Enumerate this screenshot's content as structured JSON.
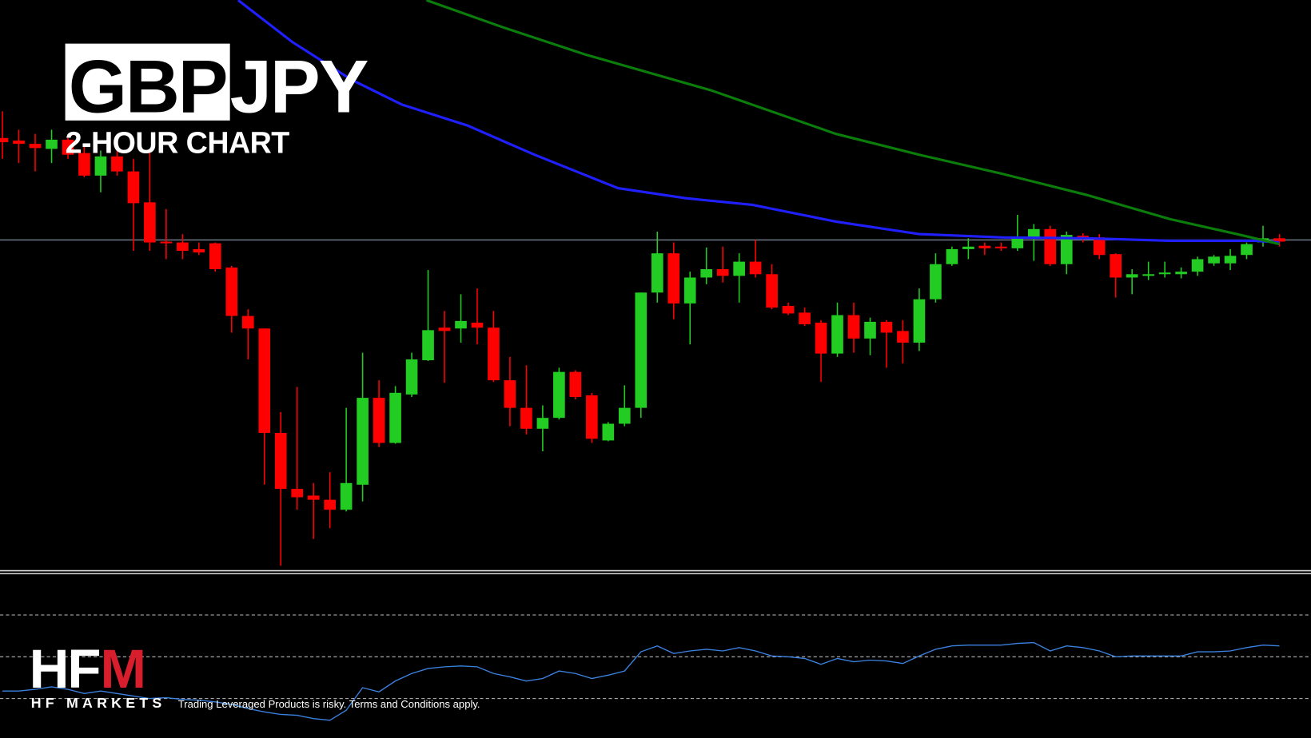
{
  "chart_data": [
    {
      "type": "candlestick",
      "title_highlight": "GBP",
      "title": "JPY",
      "subtitle": "2-HOUR CHART",
      "ylim": [
        0,
        680
      ],
      "xlim": [
        -0.15,
        79.93
      ],
      "up_color": "#22cc22",
      "down_color": "#ff0000",
      "open": [
        515,
        512,
        508,
        502,
        513,
        497,
        470,
        493,
        475,
        438,
        391,
        390,
        382,
        389,
        360,
        302,
        287,
        162,
        95,
        87,
        82,
        70,
        100,
        204,
        150,
        208,
        249,
        288,
        287,
        294,
        288,
        225,
        192,
        167,
        180,
        235,
        207,
        153,
        173,
        192,
        330,
        377,
        317,
        348,
        358,
        350,
        367,
        352,
        314,
        306,
        294,
        257,
        303,
        275,
        295,
        284,
        270,
        322,
        364,
        382,
        386,
        385,
        383,
        396,
        406,
        364,
        398,
        396,
        376,
        348,
        350,
        352,
        352,
        355,
        365,
        365,
        375,
        390,
        395
      ],
      "high": [
        547,
        525,
        520,
        525,
        515,
        505,
        500,
        500,
        490,
        500,
        430,
        400,
        390,
        390,
        362,
        310,
        287,
        187,
        217,
        102,
        115,
        192,
        258,
        225,
        218,
        258,
        357,
        308,
        328,
        335,
        308,
        253,
        243,
        195,
        240,
        237,
        210,
        175,
        219,
        330,
        403,
        390,
        355,
        384,
        385,
        377,
        393,
        364,
        318,
        312,
        297,
        318,
        318,
        300,
        297,
        297,
        335,
        377,
        385,
        395,
        390,
        390,
        423,
        412,
        410,
        403,
        401,
        400,
        377,
        358,
        367,
        367,
        360,
        373,
        375,
        382,
        390,
        410,
        400
      ],
      "low": [
        490,
        485,
        475,
        485,
        490,
        468,
        450,
        470,
        380,
        380,
        370,
        370,
        375,
        355,
        282,
        250,
        100,
        3,
        70,
        35,
        48,
        68,
        80,
        145,
        149,
        205,
        248,
        222,
        270,
        268,
        223,
        170,
        160,
        140,
        178,
        202,
        150,
        152,
        170,
        180,
        318,
        298,
        268,
        340,
        342,
        318,
        348,
        310,
        303,
        290,
        223,
        253,
        258,
        255,
        240,
        245,
        260,
        318,
        362,
        370,
        375,
        380,
        380,
        368,
        362,
        352,
        390,
        370,
        324,
        328,
        345,
        348,
        347,
        350,
        362,
        357,
        370,
        385,
        385
      ],
      "close": [
        510,
        508,
        503,
        513,
        495,
        470,
        493,
        475,
        437,
        390,
        389,
        380,
        378,
        358,
        302,
        287,
        162,
        95,
        85,
        82,
        70,
        102,
        204,
        150,
        210,
        250,
        285,
        284,
        296,
        288,
        225,
        192,
        167,
        180,
        235,
        205,
        155,
        173,
        192,
        330,
        377,
        317,
        348,
        358,
        350,
        367,
        352,
        312,
        305,
        292,
        257,
        303,
        275,
        295,
        282,
        270,
        322,
        364,
        382,
        385,
        383,
        383,
        395,
        406,
        364,
        399,
        394,
        375,
        348,
        352,
        352,
        354,
        355,
        370,
        373,
        374,
        388,
        395,
        391
      ],
      "hline": 393,
      "hline_color": "#9fb0c4",
      "series": [
        {
          "color": "#1f1fff",
          "x": [
            14.4,
            17.7,
            21.3,
            24.4,
            28.4,
            32.5,
            37.6,
            41.7,
            45.8,
            50.9,
            56.0,
            61.1,
            66.2,
            71.3,
            76.5,
            78.0
          ],
          "values": [
            680,
            630,
            585,
            555,
            530,
            495,
            455,
            443,
            435,
            415,
            400,
            396,
            395,
            392,
            392,
            390
          ]
        },
        {
          "color": "#0b7d0b",
          "x": [
            25.9,
            30.5,
            35.6,
            43.3,
            50.9,
            56.0,
            61.1,
            66.2,
            71.3,
            75.4,
            78.0
          ],
          "values": [
            680,
            648,
            615,
            572,
            520,
            495,
            472,
            447,
            418,
            400,
            388
          ]
        }
      ]
    },
    {
      "type": "line",
      "color": "#3b82e0",
      "ylim": [
        11.2,
        89.2
      ],
      "xlim": [
        -0.15,
        79.93
      ],
      "levels": [
        30,
        50,
        70
      ],
      "values": [
        33.6,
        33.6,
        34.4,
        35.6,
        34.4,
        32.4,
        33.6,
        32.4,
        31.2,
        30,
        30.4,
        29.6,
        29.2,
        28.4,
        27.2,
        25.2,
        23.6,
        22.4,
        22,
        20.4,
        19.6,
        24.4,
        35.2,
        33.2,
        38.4,
        42,
        44.4,
        45.2,
        45.6,
        45.2,
        42,
        40.4,
        38.4,
        39.6,
        43.2,
        42,
        39.6,
        41.2,
        43.2,
        52.4,
        55.2,
        51.6,
        52.8,
        53.6,
        52.8,
        54.4,
        52.8,
        50.4,
        50,
        49.2,
        46.4,
        49.2,
        47.6,
        48.4,
        48,
        46.8,
        50.4,
        53.6,
        55.2,
        55.6,
        55.6,
        55.6,
        56.4,
        56.8,
        52.8,
        55.2,
        54.4,
        52.8,
        50,
        50.4,
        50.4,
        50.4,
        50.4,
        52.4,
        52.4,
        52.8,
        54.4,
        55.6,
        55.2
      ]
    }
  ],
  "branding": {
    "logo_main": "HF",
    "logo_accent": "M",
    "logo_name": "HF MARKETS",
    "disclaimer": "Trading Leveraged Products is risky. Terms and Conditions apply."
  }
}
